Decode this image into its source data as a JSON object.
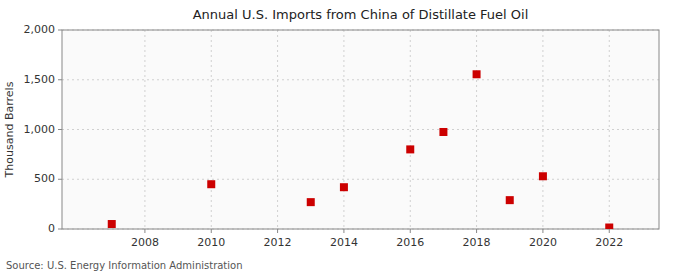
{
  "chart_data": {
    "type": "scatter",
    "title": "Annual U.S. Imports from China of Distillate Fuel Oil",
    "ylabel": "Thousand Barrels",
    "annotations": [
      "Source: U.S. Energy Information Administration"
    ],
    "x": [
      2007,
      2010,
      2013,
      2014,
      2016,
      2017,
      2018,
      2019,
      2020,
      2022
    ],
    "values": [
      50,
      450,
      270,
      420,
      800,
      975,
      1555,
      290,
      530,
      15
    ],
    "color": "#cc0000",
    "marker": "square",
    "xlim": [
      2005.5,
      2023.5
    ],
    "ylim": [
      0,
      2000
    ],
    "xticks": [
      2008,
      2010,
      2012,
      2014,
      2016,
      2018,
      2020,
      2022
    ],
    "yticks": [
      0,
      500,
      {
        "value": 1000,
        "label": "1,000"
      },
      {
        "value": 1500,
        "label": "1,500"
      },
      {
        "value": 2000,
        "label": "2,000"
      }
    ],
    "grid": true
  }
}
